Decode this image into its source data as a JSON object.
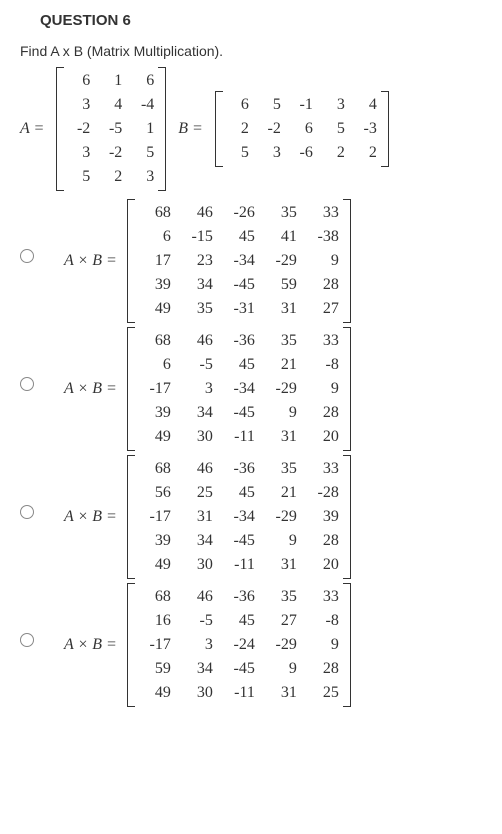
{
  "question_number": "QUESTION 6",
  "question_text": "Find A x B (Matrix Multiplication).",
  "labelA": "A =",
  "labelB": "B =",
  "labelAxB": "A × B =",
  "matrixA": [
    [
      "6",
      "1",
      "6"
    ],
    [
      "3",
      "4",
      "-4"
    ],
    [
      "-2",
      "-5",
      "1"
    ],
    [
      "3",
      "-2",
      "5"
    ],
    [
      "5",
      "2",
      "3"
    ]
  ],
  "matrixB": [
    [
      "6",
      "5",
      "-1",
      "3",
      "4"
    ],
    [
      "2",
      "-2",
      "6",
      "5",
      "-3"
    ],
    [
      "5",
      "3",
      "-6",
      "2",
      "2"
    ]
  ],
  "options": [
    [
      [
        "68",
        "46",
        "-26",
        "35",
        "33"
      ],
      [
        "6",
        "-15",
        "45",
        "41",
        "-38"
      ],
      [
        "17",
        "23",
        "-34",
        "-29",
        "9"
      ],
      [
        "39",
        "34",
        "-45",
        "59",
        "28"
      ],
      [
        "49",
        "35",
        "-31",
        "31",
        "27"
      ]
    ],
    [
      [
        "68",
        "46",
        "-36",
        "35",
        "33"
      ],
      [
        "6",
        "-5",
        "45",
        "21",
        "-8"
      ],
      [
        "-17",
        "3",
        "-34",
        "-29",
        "9"
      ],
      [
        "39",
        "34",
        "-45",
        "9",
        "28"
      ],
      [
        "49",
        "30",
        "-11",
        "31",
        "20"
      ]
    ],
    [
      [
        "68",
        "46",
        "-36",
        "35",
        "33"
      ],
      [
        "56",
        "25",
        "45",
        "21",
        "-28"
      ],
      [
        "-17",
        "31",
        "-34",
        "-29",
        "39"
      ],
      [
        "39",
        "34",
        "-45",
        "9",
        "28"
      ],
      [
        "49",
        "30",
        "-11",
        "31",
        "20"
      ]
    ],
    [
      [
        "68",
        "46",
        "-36",
        "35",
        "33"
      ],
      [
        "16",
        "-5",
        "45",
        "27",
        "-8"
      ],
      [
        "-17",
        "3",
        "-24",
        "-29",
        "9"
      ],
      [
        "59",
        "34",
        "-45",
        "9",
        "28"
      ],
      [
        "49",
        "30",
        "-11",
        "31",
        "25"
      ]
    ]
  ],
  "colors": {
    "text": "#333333",
    "background": "#ffffff",
    "radio_border": "#888888"
  }
}
